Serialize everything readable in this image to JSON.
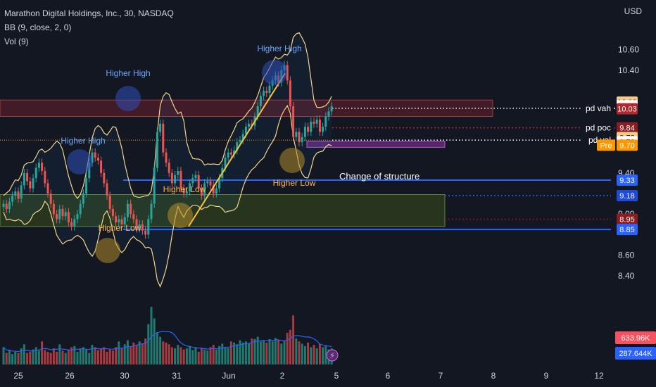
{
  "header": {
    "symbol_line": "Marathon Digital Holdings, Inc., 30, NASDAQ",
    "bb_line": "BB (9, close, 2, 0)",
    "vol_line": "Vol (9)",
    "currency": "USD"
  },
  "colors": {
    "background": "#131722",
    "bull": "#26a69a",
    "bear": "#ef5350",
    "bollinger": "#f5d58a",
    "resistance_zone": "#ef5350",
    "support_zone": "#8bc34a",
    "blue_level": "#2962ff",
    "trend": "#ffc13b",
    "structure_box": "#9c27b0",
    "volume_ma": "#2962ff"
  },
  "chart_data": {
    "type": "candlestick",
    "y_axis": {
      "ticks": [
        "10.60",
        "10.40",
        "9.40",
        "9.00",
        "8.60",
        "8.40"
      ],
      "ylim": [
        8.07,
        10.81
      ]
    },
    "x_axis": {
      "ticks": [
        "25",
        "26",
        "30",
        "31",
        "Jun",
        "2",
        "5",
        "6",
        "7",
        "8",
        "9",
        "12"
      ]
    },
    "price_labels": [
      {
        "text": "10.09",
        "price": 10.09,
        "bg": "#f9c886",
        "fg": "#131722"
      },
      {
        "text": "10.06",
        "price": 10.055,
        "bg": "#ffffff",
        "fg": "#131722"
      },
      {
        "text": "10.03",
        "price": 10.025,
        "bg": "#b2282e",
        "fg": "#ffffff"
      },
      {
        "text": "9.84",
        "price": 9.84,
        "bg": "#8b1c22",
        "fg": "#ffffff"
      },
      {
        "text": "9.72",
        "price": 9.745,
        "bg": "#f9c886",
        "fg": "#131722"
      },
      {
        "text": "9.72",
        "price": 9.705,
        "bg": "#ffffff",
        "fg": "#131722"
      },
      {
        "text": "9.70",
        "price": 9.67,
        "bg": "#ff9800",
        "fg": "#ffffff",
        "tag": "Pre"
      },
      {
        "text": "9.33",
        "price": 9.33,
        "bg": "#2962ff",
        "fg": "#ffffff"
      },
      {
        "text": "9.18",
        "price": 9.18,
        "bg": "#1e4bd8",
        "fg": "#ffffff"
      },
      {
        "text": "8.95",
        "price": 8.95,
        "bg": "#8b1c22",
        "fg": "#ffffff"
      },
      {
        "text": "8.85",
        "price": 8.85,
        "bg": "#2962ff",
        "fg": "#ffffff"
      }
    ],
    "volume_labels": [
      {
        "text": "633.96K",
        "bg": "#f7525f",
        "fg": "#ffffff"
      },
      {
        "text": "287.644K",
        "bg": "#2962ff",
        "fg": "#ffffff"
      }
    ],
    "level_lines": [
      {
        "label": "pd vah",
        "price": 10.03,
        "style": "white-dotted"
      },
      {
        "label": "pd poc",
        "price": 9.84,
        "style": "red-dotted"
      },
      {
        "label": "pd val",
        "price": 9.72,
        "style": "white-dotted"
      }
    ],
    "zones": [
      {
        "name": "resistance",
        "top": 10.11,
        "bottom": 9.95
      },
      {
        "name": "support",
        "top": 9.19,
        "bottom": 8.88
      }
    ],
    "structure_box": {
      "top": 9.71,
      "bottom": 9.65
    },
    "annotations": [
      {
        "text": "Higher High",
        "kind": "high"
      },
      {
        "text": "Higher High",
        "kind": "high"
      },
      {
        "text": "Higher High",
        "kind": "high"
      },
      {
        "text": "Higher Low",
        "kind": "low"
      },
      {
        "text": "Higher Low",
        "kind": "low"
      },
      {
        "text": "Higher Low",
        "kind": "low"
      },
      {
        "text": "Change of structure",
        "kind": "note"
      }
    ],
    "trendline": {
      "from": 8.88,
      "to": 10.37
    },
    "closes": [
      9.1,
      9.05,
      9.12,
      9.18,
      9.22,
      9.15,
      9.28,
      9.4,
      9.32,
      9.25,
      9.35,
      9.45,
      9.5,
      9.42,
      9.3,
      9.2,
      9.1,
      9.0,
      8.95,
      9.05,
      8.98,
      9.02,
      8.92,
      8.88,
      8.95,
      9.0,
      9.1,
      9.2,
      9.35,
      9.5,
      9.6,
      9.55,
      9.52,
      9.4,
      9.3,
      9.18,
      9.05,
      8.98,
      8.92,
      8.95,
      8.9,
      8.97,
      9.1,
      9.0,
      8.95,
      8.86,
      8.9,
      8.84,
      8.8,
      8.95,
      9.1,
      9.45,
      9.8,
      9.88,
      9.6,
      9.5,
      9.4,
      9.3,
      9.38,
      9.42,
      9.25,
      9.2,
      9.22,
      9.3,
      9.35,
      9.38,
      9.25,
      9.18,
      9.3,
      9.32,
      9.28,
      9.2,
      9.25,
      9.35,
      9.45,
      9.55,
      9.6,
      9.58,
      9.62,
      9.7,
      9.72,
      9.78,
      9.85,
      9.88,
      9.86,
      9.95,
      10.05,
      10.15,
      10.2,
      10.18,
      10.25,
      10.3,
      10.35,
      10.28,
      10.4,
      10.45,
      10.3,
      10.05,
      9.75,
      9.8,
      9.7,
      9.75,
      9.85,
      9.8,
      9.9,
      9.88,
      9.92,
      9.8,
      9.85,
      9.95,
      10.0,
      10.05
    ],
    "volumes": [
      30,
      20,
      25,
      18,
      22,
      20,
      28,
      35,
      20,
      22,
      26,
      30,
      24,
      40,
      25,
      22,
      20,
      28,
      22,
      35,
      24,
      20,
      26,
      30,
      32,
      22,
      28,
      30,
      26,
      20,
      34,
      30,
      25,
      28,
      30,
      22,
      26,
      24,
      30,
      40,
      28,
      35,
      42,
      30,
      38,
      34,
      40,
      36,
      45,
      70,
      100,
      80,
      55,
      48,
      40,
      38,
      35,
      30,
      28,
      34,
      30,
      26,
      28,
      32,
      25,
      30,
      22,
      28,
      26,
      24,
      30,
      34,
      26,
      32,
      36,
      30,
      28,
      40,
      38,
      35,
      42,
      38,
      40,
      36,
      45,
      44,
      48,
      40,
      42,
      38,
      44,
      40,
      46,
      42,
      36,
      40,
      55,
      60,
      85,
      45,
      40,
      36,
      32,
      38,
      30,
      34,
      28,
      36,
      30,
      32,
      26,
      28
    ]
  }
}
